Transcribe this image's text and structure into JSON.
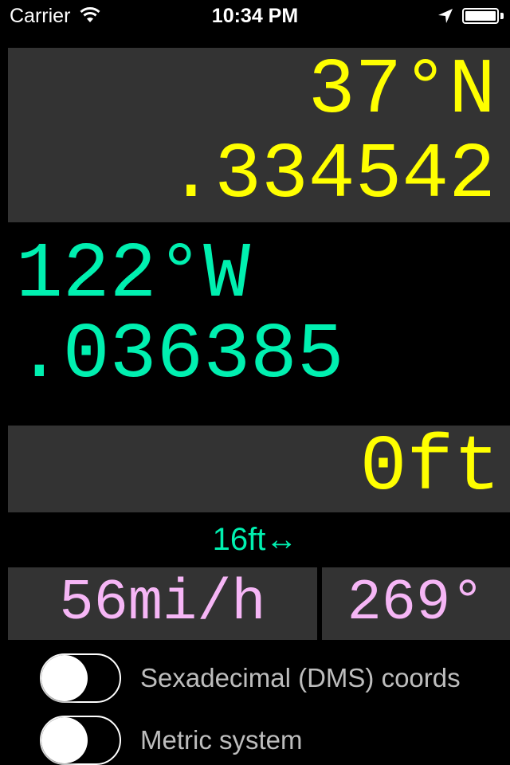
{
  "status_bar": {
    "carrier": "Carrier",
    "time": "10:34 PM",
    "icons": [
      "wifi-icon",
      "location-arrow-icon",
      "battery-icon"
    ],
    "battery_level": 1.0
  },
  "latitude": {
    "degrees": "37°N",
    "fraction": ".334542"
  },
  "longitude": {
    "degrees": "122°W",
    "fraction": ".036385"
  },
  "altitude": {
    "value": "0ft"
  },
  "accuracy": {
    "value": "16ft↔"
  },
  "speed": {
    "value": "56mi/h"
  },
  "heading": {
    "value": "269°"
  },
  "settings": {
    "dms_label": "Sexadecimal (DMS) coords",
    "dms_enabled": false,
    "metric_label": "Metric system",
    "metric_enabled": false
  },
  "colors": {
    "latitude_yellow": "#ffff00",
    "longitude_green": "#00f0b0",
    "speed_pink": "#f6b6f6",
    "panel_gray": "#333333",
    "background": "#000000"
  }
}
